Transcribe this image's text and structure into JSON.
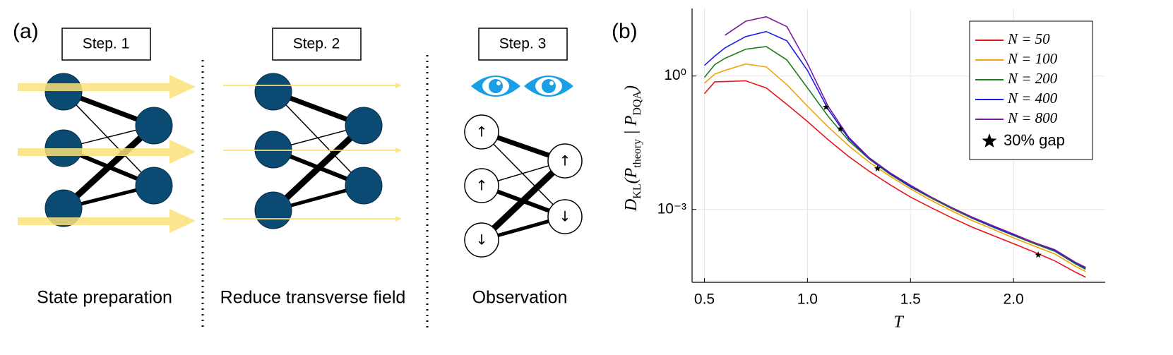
{
  "diagram": {
    "label": "(a)",
    "steps": [
      {
        "title": "Step. 1",
        "caption": "State preparation"
      },
      {
        "title": "Step. 2",
        "caption": "Reduce transverse field"
      },
      {
        "title": "Step. 3",
        "caption": "Observation"
      }
    ],
    "spins": [
      "↑",
      "↑",
      "↓",
      "↑",
      "↓"
    ]
  },
  "chart_data": {
    "type": "line",
    "panel_label": "(b)",
    "xlabel": "T",
    "ylabel": "D_{KL}(P_{theory} | P_{DQA})",
    "log_y": true,
    "grid": true,
    "legend": "top-right",
    "x": [
      0.5,
      0.55,
      0.6,
      0.7,
      0.8,
      0.9,
      1.0,
      1.1,
      1.2,
      1.3,
      1.4,
      1.5,
      1.6,
      1.7,
      1.8,
      1.9,
      2.0,
      2.1,
      2.2,
      2.3,
      2.35
    ],
    "xlim": [
      0.44,
      2.445
    ],
    "ylim": [
      2.3e-05,
      33
    ],
    "xticks": [
      0.5,
      {
        "value": 1,
        "label": "1.0"
      },
      1.5,
      {
        "value": 2,
        "label": "2.0"
      }
    ],
    "yticks": [
      {
        "value": 1,
        "label": "10⁰"
      },
      {
        "value": 0.001,
        "label": "10⁻³"
      }
    ],
    "series": [
      {
        "name": "N = 50",
        "color": "#e8141b",
        "values": [
          0.4,
          0.74,
          0.75,
          0.78,
          0.54,
          0.23,
          0.095,
          0.037,
          0.0155,
          0.0072,
          0.0036,
          0.0019,
          0.0011,
          0.00065,
          0.0004,
          0.00026,
          0.00017,
          0.00011,
          7e-05,
          3.9e-05,
          3e-05
        ]
      },
      {
        "name": "N = 100",
        "color": "#f2a20c",
        "values": [
          0.69,
          1.1,
          1.34,
          1.86,
          1.6,
          0.64,
          0.21,
          0.072,
          0.027,
          0.0115,
          0.0056,
          0.0029,
          0.0016,
          0.00093,
          0.00056,
          0.00036,
          0.00023,
          0.00015,
          0.0001,
          5.3e-05,
          4e-05
        ]
      },
      {
        "name": "N = 200",
        "color": "#1e7d1e",
        "values": [
          0.93,
          1.8,
          2.5,
          4.0,
          4.6,
          2.3,
          0.54,
          0.125,
          0.035,
          0.0135,
          0.0062,
          0.0032,
          0.0018,
          0.00104,
          0.00063,
          0.0004,
          0.00026,
          0.00017,
          0.000115,
          6e-05,
          4.5e-05
        ]
      },
      {
        "name": "N = 400",
        "color": "#1a1aee",
        "values": [
          1.73,
          2.8,
          4.3,
          7.7,
          10,
          6.2,
          1.34,
          0.18,
          0.039,
          0.014,
          0.0065,
          0.0033,
          0.0019,
          0.0011,
          0.00065,
          0.00041,
          0.00027,
          0.00018,
          0.00012,
          6.3e-05,
          4.8e-05
        ]
      },
      {
        "name": "N = 800",
        "color": "#7a1a9a",
        "values": [
          null,
          null,
          8.3,
          17,
          21.5,
          12.9,
          1.9,
          0.21,
          0.042,
          0.0145,
          0.0067,
          0.0035,
          0.0019,
          0.0011,
          0.00067,
          0.00043,
          0.00028,
          0.00018,
          0.000125,
          6.5e-05,
          5e-05
        ]
      },
      {
        "name": "30% gap",
        "color": "#000000",
        "marker": "star",
        "x": [
          1.09,
          1.16,
          1.34,
          2.12
        ],
        "values": [
          0.2,
          0.065,
          0.0083,
          9.5e-05
        ]
      }
    ]
  }
}
